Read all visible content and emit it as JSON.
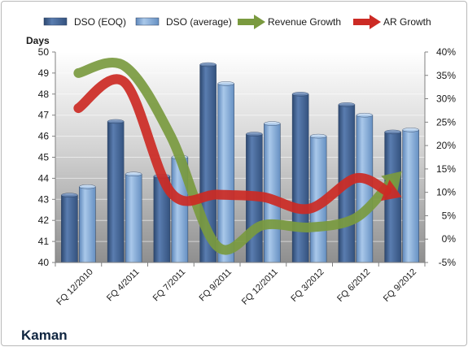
{
  "chart_data": {
    "type": "bar",
    "title": "Kaman",
    "y_left_label": "Days",
    "y_left_range": [
      40,
      50
    ],
    "y_left_ticks": [
      "40",
      "41",
      "42",
      "43",
      "44",
      "45",
      "46",
      "47",
      "48",
      "49",
      "50"
    ],
    "y_right_range": [
      -5,
      40
    ],
    "y_right_ticks": [
      "-5%",
      "0%",
      "5%",
      "10%",
      "15%",
      "20%",
      "25%",
      "30%",
      "35%",
      "40%"
    ],
    "categories": [
      "FQ 12/2010",
      "FQ 4/2011",
      "FQ 7/2011",
      "FQ 9/2011",
      "FQ 12/2011",
      "FQ 3/2012",
      "FQ 6/2012",
      "FQ 9/2012"
    ],
    "grid": true,
    "legend_position": "top",
    "series": [
      {
        "name": "DSO (EOQ)",
        "kind": "bar",
        "axis": "left",
        "color": "#4a6fa5",
        "values": [
          43.2,
          46.7,
          44.1,
          49.4,
          46.1,
          48.0,
          47.5,
          46.2
        ]
      },
      {
        "name": "DSO (average)",
        "kind": "bar",
        "axis": "left",
        "color": "#87aedb",
        "values": [
          43.6,
          44.2,
          45.0,
          48.5,
          46.6,
          46.0,
          47.0,
          46.3
        ]
      },
      {
        "name": "Revenue Growth",
        "kind": "line-arrow",
        "axis": "right",
        "color": "#7a9a3f",
        "values": [
          35.5,
          37.0,
          22.0,
          -1.5,
          3.0,
          2.5,
          4.5,
          14.5
        ]
      },
      {
        "name": "AR Growth",
        "kind": "line-arrow",
        "axis": "right",
        "color": "#cc2a24",
        "values": [
          28.0,
          33.5,
          10.0,
          9.5,
          9.0,
          6.5,
          13.0,
          9.0
        ]
      }
    ]
  }
}
